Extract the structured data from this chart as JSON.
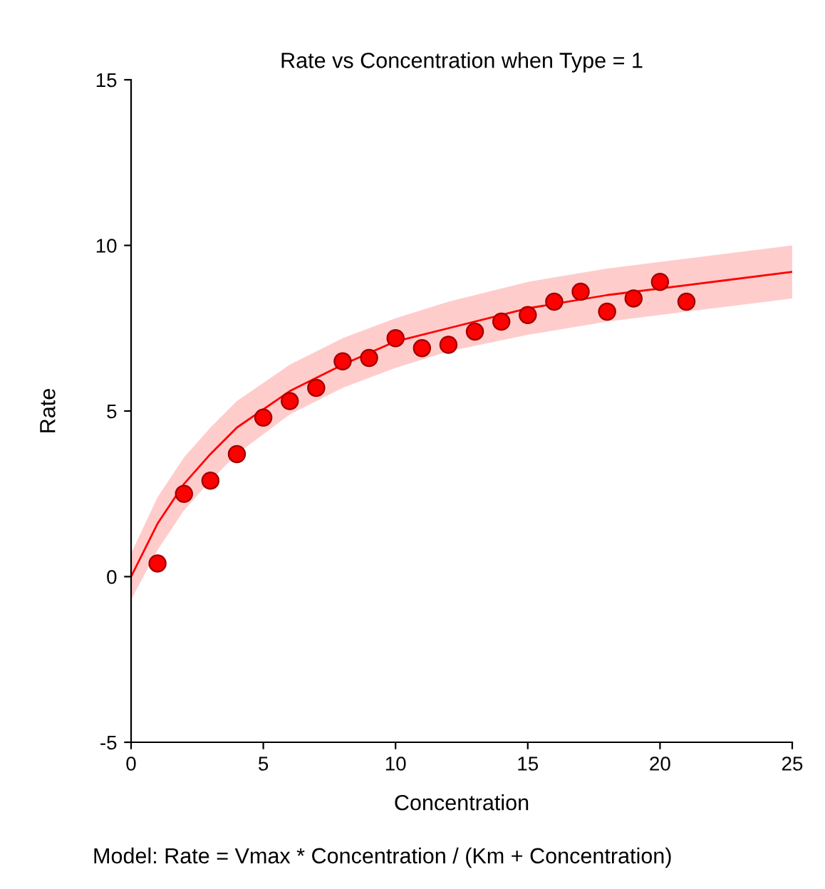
{
  "chart_data": {
    "type": "scatter",
    "title": "Rate vs Concentration when Type = 1",
    "xlabel": "Concentration",
    "ylabel": "Rate",
    "annotations": [
      "Model: Rate = Vmax * Concentration / (Km + Concentration)"
    ],
    "series": [
      {
        "color": "#ff0000",
        "marker": "circle",
        "x": [
          1,
          2,
          3,
          4,
          5,
          6,
          7,
          8,
          9,
          10,
          11,
          12,
          13,
          14,
          15,
          16,
          17,
          18,
          19,
          20,
          21
        ],
        "values": [
          0.4,
          2.5,
          2.9,
          3.7,
          4.8,
          5.3,
          5.7,
          6.5,
          6.6,
          7.2,
          6.9,
          7.0,
          7.4,
          7.7,
          7.9,
          8.3,
          8.6,
          8.0,
          8.4,
          8.9,
          8.3
        ]
      },
      {
        "type": "line",
        "color": "#ff0000",
        "marker": "none",
        "line_style": "solid",
        "x": [
          0,
          1,
          2,
          3,
          4,
          6,
          8,
          10,
          12,
          15,
          18,
          21,
          25
        ],
        "values": [
          0,
          1.6,
          2.8,
          3.7,
          4.5,
          5.6,
          6.4,
          7.1,
          7.5,
          8.1,
          8.5,
          8.8,
          9.2
        ],
        "lower": [
          -0.7,
          0.8,
          2.0,
          2.9,
          3.7,
          4.9,
          5.7,
          6.3,
          6.8,
          7.3,
          7.7,
          8.0,
          8.4
        ],
        "upper": [
          0.7,
          2.4,
          3.6,
          4.5,
          5.3,
          6.4,
          7.2,
          7.8,
          8.3,
          8.9,
          9.3,
          9.6,
          10.0
        ]
      }
    ],
    "xlim": [
      0,
      25
    ],
    "ylim": [
      -5,
      15
    ],
    "xticks": [
      0,
      5,
      10,
      15,
      20,
      25
    ],
    "yticks": [
      -5,
      0,
      5,
      10,
      15
    ],
    "grid": false,
    "legend": false
  }
}
